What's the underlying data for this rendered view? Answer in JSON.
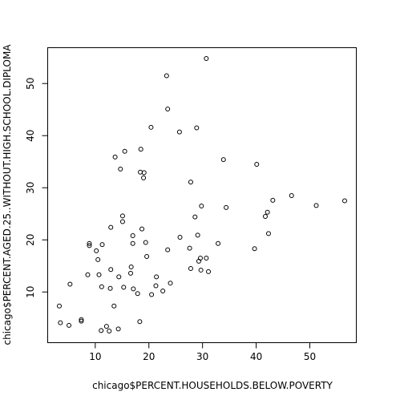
{
  "chart_data": {
    "type": "scatter",
    "xlabel": "chicago$PERCENT.HOUSEHOLDS.BELOW.POVERTY",
    "ylabel": "chicago$PERCENT.AGED.25..WITHOUT.HIGH.SCHOOL.DIPLOMA",
    "xlim": [
      3.3,
      56.5
    ],
    "ylim": [
      2.5,
      54.8
    ],
    "x_ticks": [
      10,
      20,
      30,
      40,
      50
    ],
    "y_ticks": [
      10,
      20,
      30,
      40,
      50
    ],
    "marker": "open-circle",
    "grid": false,
    "legend": "none",
    "points": [
      {
        "x": 3.3,
        "y": 7.3
      },
      {
        "x": 3.5,
        "y": 4.1
      },
      {
        "x": 5.1,
        "y": 3.6
      },
      {
        "x": 5.3,
        "y": 11.5
      },
      {
        "x": 7.4,
        "y": 4.7
      },
      {
        "x": 7.4,
        "y": 4.4
      },
      {
        "x": 8.6,
        "y": 13.3
      },
      {
        "x": 8.9,
        "y": 18.9
      },
      {
        "x": 8.9,
        "y": 19.3
      },
      {
        "x": 10.2,
        "y": 17.9
      },
      {
        "x": 10.5,
        "y": 16.2
      },
      {
        "x": 10.7,
        "y": 13.3
      },
      {
        "x": 11.1,
        "y": 2.6
      },
      {
        "x": 11.2,
        "y": 11.0
      },
      {
        "x": 11.3,
        "y": 19.1
      },
      {
        "x": 12.1,
        "y": 3.4
      },
      {
        "x": 12.6,
        "y": 2.5
      },
      {
        "x": 12.8,
        "y": 10.7
      },
      {
        "x": 12.9,
        "y": 14.3
      },
      {
        "x": 12.9,
        "y": 22.4
      },
      {
        "x": 13.5,
        "y": 7.3
      },
      {
        "x": 13.7,
        "y": 35.9
      },
      {
        "x": 14.3,
        "y": 2.9
      },
      {
        "x": 14.4,
        "y": 12.9
      },
      {
        "x": 14.7,
        "y": 33.6
      },
      {
        "x": 15.1,
        "y": 23.5
      },
      {
        "x": 15.1,
        "y": 24.6
      },
      {
        "x": 15.3,
        "y": 10.9
      },
      {
        "x": 15.5,
        "y": 37.0
      },
      {
        "x": 16.6,
        "y": 13.6
      },
      {
        "x": 16.7,
        "y": 14.8
      },
      {
        "x": 17.0,
        "y": 20.8
      },
      {
        "x": 17.0,
        "y": 19.3
      },
      {
        "x": 17.1,
        "y": 10.6
      },
      {
        "x": 17.9,
        "y": 9.7
      },
      {
        "x": 18.3,
        "y": 4.3
      },
      {
        "x": 18.4,
        "y": 33.0
      },
      {
        "x": 18.5,
        "y": 37.4
      },
      {
        "x": 18.7,
        "y": 22.1
      },
      {
        "x": 19.0,
        "y": 31.9
      },
      {
        "x": 19.1,
        "y": 32.9
      },
      {
        "x": 19.4,
        "y": 19.5
      },
      {
        "x": 19.6,
        "y": 16.8
      },
      {
        "x": 20.4,
        "y": 41.6
      },
      {
        "x": 20.5,
        "y": 9.5
      },
      {
        "x": 21.3,
        "y": 11.2
      },
      {
        "x": 21.4,
        "y": 12.9
      },
      {
        "x": 22.6,
        "y": 10.2
      },
      {
        "x": 23.3,
        "y": 51.5
      },
      {
        "x": 23.5,
        "y": 45.1
      },
      {
        "x": 23.5,
        "y": 18.1
      },
      {
        "x": 24.0,
        "y": 11.7
      },
      {
        "x": 25.7,
        "y": 40.7
      },
      {
        "x": 25.8,
        "y": 20.5
      },
      {
        "x": 27.6,
        "y": 18.4
      },
      {
        "x": 27.8,
        "y": 31.1
      },
      {
        "x": 27.8,
        "y": 14.5
      },
      {
        "x": 28.6,
        "y": 24.4
      },
      {
        "x": 28.9,
        "y": 41.5
      },
      {
        "x": 29.1,
        "y": 20.9
      },
      {
        "x": 29.3,
        "y": 15.9
      },
      {
        "x": 29.6,
        "y": 16.5
      },
      {
        "x": 29.7,
        "y": 14.2
      },
      {
        "x": 29.8,
        "y": 26.5
      },
      {
        "x": 30.7,
        "y": 54.8
      },
      {
        "x": 30.7,
        "y": 16.5
      },
      {
        "x": 31.1,
        "y": 13.9
      },
      {
        "x": 32.9,
        "y": 19.3
      },
      {
        "x": 33.9,
        "y": 35.4
      },
      {
        "x": 34.4,
        "y": 26.2
      },
      {
        "x": 39.7,
        "y": 18.3
      },
      {
        "x": 40.1,
        "y": 34.5
      },
      {
        "x": 41.7,
        "y": 24.5
      },
      {
        "x": 42.1,
        "y": 25.3
      },
      {
        "x": 42.3,
        "y": 21.2
      },
      {
        "x": 43.1,
        "y": 27.6
      },
      {
        "x": 46.6,
        "y": 28.5
      },
      {
        "x": 51.2,
        "y": 26.6
      },
      {
        "x": 56.5,
        "y": 27.5
      }
    ]
  }
}
